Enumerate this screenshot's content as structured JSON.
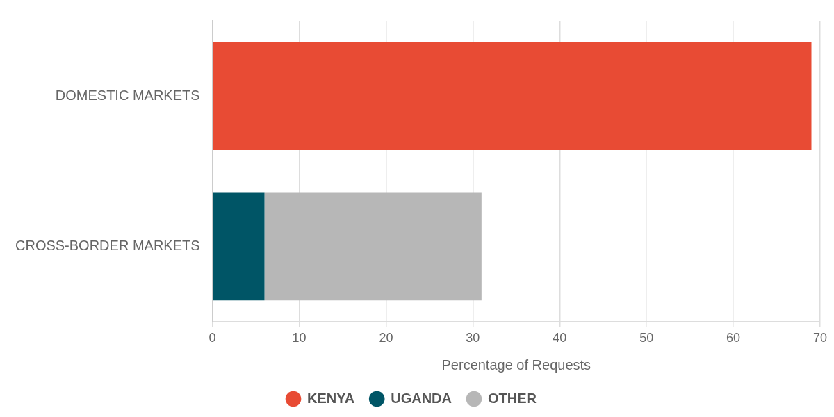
{
  "chart_data": {
    "type": "bar",
    "orientation": "horizontal",
    "stacked": true,
    "categories": [
      "DOMESTIC MARKETS",
      "CROSS-BORDER MARKETS"
    ],
    "series": [
      {
        "name": "KENYA",
        "color": "#e84b34",
        "values": [
          69,
          null
        ]
      },
      {
        "name": "UGANDA",
        "color": "#005566",
        "values": [
          null,
          6
        ]
      },
      {
        "name": "OTHER",
        "color": "#b7b7b7",
        "values": [
          null,
          25
        ]
      }
    ],
    "xlabel": "Percentage of Requests",
    "xlim": [
      0,
      70
    ],
    "xticks": [
      0,
      10,
      20,
      30,
      40,
      50,
      60,
      70
    ],
    "grid": true,
    "legend": "bottom"
  }
}
